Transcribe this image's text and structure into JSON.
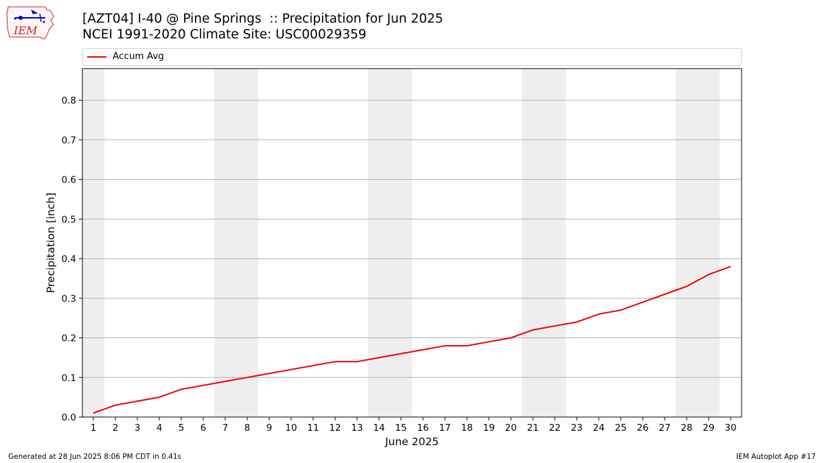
{
  "logo": {
    "text": "IEM"
  },
  "header": {
    "title_line1": "[AZT04] I-40 @ Pine Springs  :: Precipitation for Jun 2025",
    "title_line2": "NCEI 1991-2020 Climate Site: USC00029359"
  },
  "footer": {
    "left": "Generated at 28 Jun 2025 8:06 PM CDT in 0.41s",
    "right": "IEM Autoplot App #17"
  },
  "colors": {
    "line": "#ee0000",
    "weekend_band": "#eeeeee",
    "grid": "#b0b0b0",
    "logo_outline": "#cc2222",
    "logo_icon": "#0000cc"
  },
  "chart_data": {
    "type": "line",
    "xlabel": "June 2025",
    "ylabel": "Precipitation [inch]",
    "x": [
      1,
      2,
      3,
      4,
      5,
      6,
      7,
      8,
      9,
      10,
      11,
      12,
      13,
      14,
      15,
      16,
      17,
      18,
      19,
      20,
      21,
      22,
      23,
      24,
      25,
      26,
      27,
      28,
      29,
      30
    ],
    "xlim": [
      0.5,
      30.5
    ],
    "ylim": [
      0,
      0.88
    ],
    "yticks": [
      0.0,
      0.1,
      0.2,
      0.3,
      0.4,
      0.5,
      0.6,
      0.7,
      0.8
    ],
    "ytick_labels": [
      "0.0",
      "0.1",
      "0.2",
      "0.3",
      "0.4",
      "0.5",
      "0.6",
      "0.7",
      "0.8"
    ],
    "grid": "horizontal",
    "legend": "top",
    "weekend_bands": [
      [
        0.5,
        1.5
      ],
      [
        6.5,
        8.5
      ],
      [
        13.5,
        15.5
      ],
      [
        20.5,
        22.5
      ],
      [
        27.5,
        29.5
      ]
    ],
    "series": [
      {
        "name": "Accum Avg",
        "values": [
          0.01,
          0.03,
          0.04,
          0.05,
          0.07,
          0.08,
          0.09,
          0.1,
          0.11,
          0.12,
          0.13,
          0.14,
          0.14,
          0.15,
          0.16,
          0.17,
          0.18,
          0.18,
          0.19,
          0.2,
          0.22,
          0.23,
          0.24,
          0.26,
          0.27,
          0.29,
          0.31,
          0.33,
          0.36,
          0.38
        ]
      }
    ]
  }
}
